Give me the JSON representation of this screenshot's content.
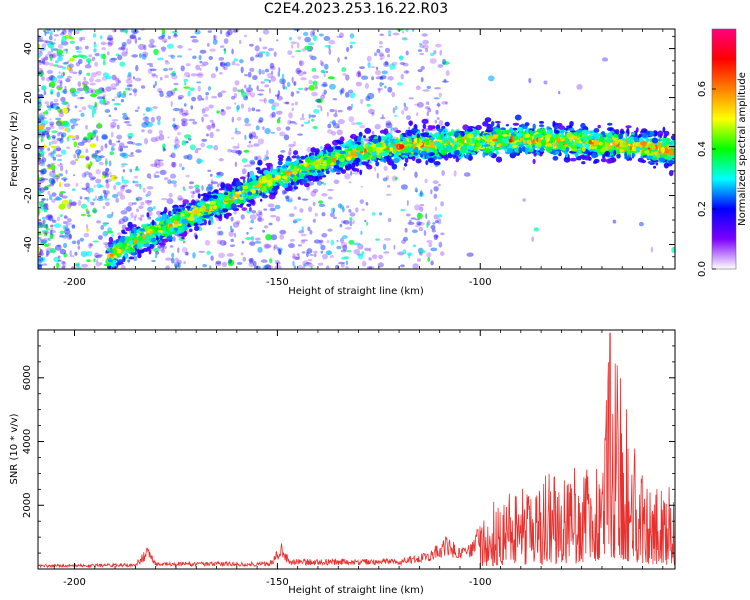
{
  "title": "C2E4.2023.253.16.22.R03",
  "chart_data": [
    {
      "type": "heatmap",
      "xlabel": "Height of straight line (km)",
      "ylabel": "Frequency (Hz)",
      "xlim": [
        -209,
        -52
      ],
      "ylim": [
        -50,
        48
      ],
      "xticks": [
        -200,
        -150,
        -100
      ],
      "yticks": [
        -40,
        -20,
        0,
        20,
        40
      ],
      "ridge": {
        "x": [
          -192,
          -185,
          -175,
          -165,
          -155,
          -147,
          -140,
          -130,
          -120,
          -110,
          -100,
          -90,
          -80,
          -70,
          -60,
          -52
        ],
        "y": [
          -46,
          -38,
          -31,
          -24,
          -16,
          -11,
          -7,
          -2,
          0,
          1,
          2,
          3,
          2,
          1,
          0,
          -2
        ]
      },
      "colorbar": {
        "label": "Normalized spectral amplitude",
        "range": [
          0,
          0.8
        ],
        "ticks": [
          0.0,
          0.2,
          0.4,
          0.6
        ],
        "colors": [
          "#ffffff",
          "#7d00ff",
          "#0000ff",
          "#00ffff",
          "#00ff00",
          "#ffff00",
          "#ff8000",
          "#ff0000",
          "#ff0080"
        ]
      }
    },
    {
      "type": "line",
      "xlabel": "Height of straight line (km)",
      "ylabel": "SNR (10 * v/v)",
      "xlim": [
        -209,
        -52
      ],
      "ylim": [
        0,
        7500
      ],
      "xticks": [
        -200,
        -150,
        -100
      ],
      "yticks": [
        2000,
        4000,
        6000
      ],
      "color": "#e8302e",
      "envelope": {
        "x": [
          -209,
          -185,
          -182,
          -180,
          -152,
          -149,
          -147,
          -120,
          -112,
          -108,
          -105,
          -102,
          -100,
          -90,
          -80,
          -70,
          -68,
          -60,
          -52
        ],
        "y": [
          150,
          200,
          800,
          250,
          250,
          950,
          350,
          350,
          700,
          1200,
          700,
          900,
          1800,
          2500,
          3000,
          3400,
          7400,
          2800,
          2500
        ]
      }
    }
  ]
}
